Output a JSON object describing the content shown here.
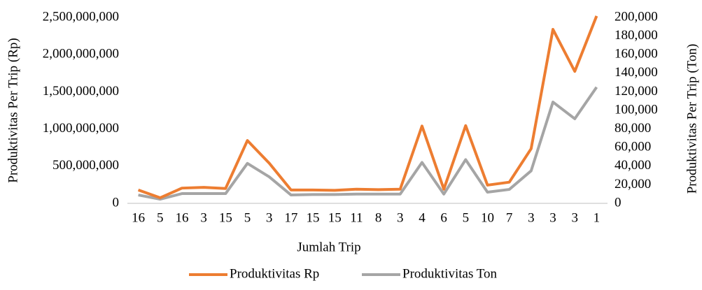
{
  "chart_data": {
    "type": "line",
    "x_label": "Jumlah Trip",
    "y_label": "Produktivitas Per Trip (Rp)",
    "y2_label": "Produktivitas Per Trip (Ton)",
    "categories": [
      "16",
      "5",
      "16",
      "3",
      "15",
      "5",
      "3",
      "17",
      "15",
      "15",
      "11",
      "8",
      "3",
      "4",
      "6",
      "5",
      "10",
      "7",
      "3",
      "3",
      "3",
      "1"
    ],
    "series": [
      {
        "name": "Produktivitas Rp",
        "color": "#ed7d31",
        "axis": "y",
        "values": [
          180000000,
          75000000,
          205000000,
          215000000,
          200000000,
          845000000,
          540000000,
          180000000,
          180000000,
          175000000,
          190000000,
          185000000,
          190000000,
          1040000000,
          190000000,
          1045000000,
          245000000,
          285000000,
          735000000,
          2340000000,
          1775000000,
          2520000000
        ]
      },
      {
        "name": "Produktivitas Ton",
        "color": "#a5a5a5",
        "axis": "y2",
        "values": [
          9000,
          4500,
          10500,
          10500,
          10500,
          43000,
          28500,
          9000,
          9500,
          9500,
          10000,
          10000,
          10000,
          44000,
          10000,
          47000,
          12000,
          15000,
          35000,
          109000,
          91000,
          125000
        ]
      }
    ],
    "ylim": [
      0,
      2500000000
    ],
    "yticks": [
      0,
      {
        "value": 500000000,
        "label": "500,000,000"
      },
      {
        "value": 1000000000,
        "label": "1,000,000,000"
      },
      {
        "value": 1500000000,
        "label": "1,500,000,000"
      },
      {
        "value": 2000000000,
        "label": "2,000,000,000"
      },
      {
        "value": 2500000000,
        "label": "2,500,000,000"
      }
    ],
    "y2lim": [
      0,
      200000
    ],
    "y2ticks": [
      0,
      {
        "value": 20000,
        "label": "20,000"
      },
      {
        "value": 40000,
        "label": "40,000"
      },
      {
        "value": 60000,
        "label": "60,000"
      },
      {
        "value": 80000,
        "label": "80,000"
      },
      {
        "value": 100000,
        "label": "100,000"
      },
      {
        "value": 120000,
        "label": "120,000"
      },
      {
        "value": 140000,
        "label": "140,000"
      },
      {
        "value": 160000,
        "label": "160,000"
      },
      {
        "value": 180000,
        "label": "180,000"
      },
      {
        "value": 200000,
        "label": "200,000"
      }
    ],
    "legend": "bottom"
  }
}
